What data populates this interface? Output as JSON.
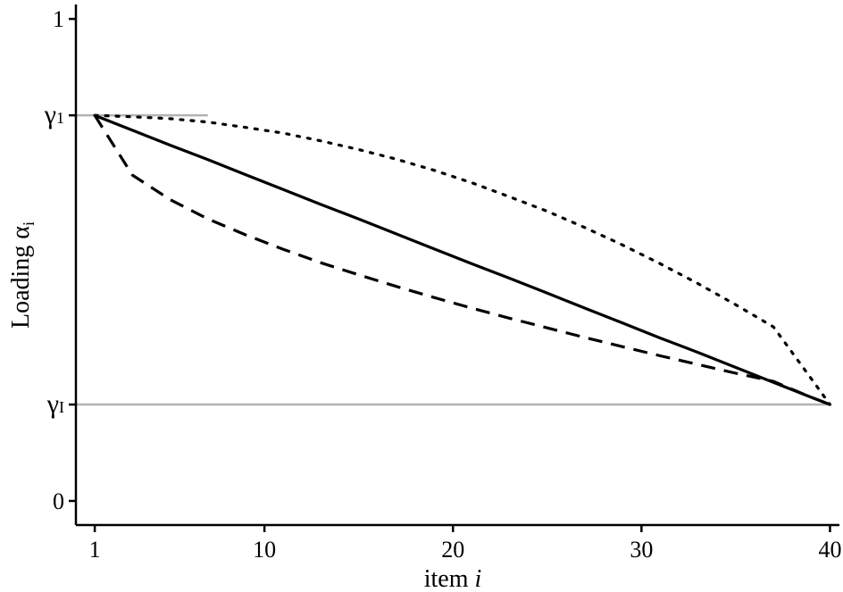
{
  "chart_data": {
    "type": "line",
    "xlabel": "item",
    "xlabel_var": "i",
    "ylabel": "Loading",
    "ylabel_symbol": "α",
    "ylabel_subscript": "i",
    "xlim": [
      0,
      40.5
    ],
    "ylim": [
      -0.05,
      1.03
    ],
    "x_ticks": [
      1,
      10,
      20,
      30,
      40
    ],
    "y_ticks": [
      {
        "value": 0,
        "label": "0"
      },
      {
        "value": 0.2,
        "label": "γ",
        "subscript": "I"
      },
      {
        "value": 0.8,
        "label": "γ",
        "subscript": "1"
      },
      {
        "value": 1,
        "label": "1"
      }
    ],
    "reference_lines": [
      {
        "name": "gamma_1",
        "y": 0.8,
        "x_from": 0,
        "x_to": 7,
        "color": "#b3b3b3"
      },
      {
        "name": "gamma_I",
        "y": 0.2,
        "x_from": 0,
        "x_to": 40,
        "color": "#b3b3b3"
      }
    ],
    "x": [
      1,
      3,
      5,
      7,
      9,
      11,
      13,
      15,
      17,
      19,
      21,
      23,
      25,
      27,
      29,
      31,
      33,
      35,
      37,
      39,
      40
    ],
    "series": [
      {
        "style": "solid",
        "values": [
          0.8,
          0.769,
          0.738,
          0.708,
          0.677,
          0.646,
          0.615,
          0.585,
          0.554,
          0.523,
          0.492,
          0.462,
          0.431,
          0.4,
          0.369,
          0.338,
          0.308,
          0.277,
          0.246,
          0.215,
          0.2
        ]
      },
      {
        "style": "dotted",
        "values": [
          0.8,
          0.797,
          0.793,
          0.786,
          0.775,
          0.763,
          0.747,
          0.729,
          0.709,
          0.686,
          0.66,
          0.631,
          0.601,
          0.567,
          0.531,
          0.492,
          0.451,
          0.407,
          0.361,
          0.254,
          0.2
        ]
      },
      {
        "style": "dashed",
        "values": [
          0.8,
          0.676,
          0.625,
          0.585,
          0.552,
          0.522,
          0.494,
          0.469,
          0.445,
          0.422,
          0.4,
          0.379,
          0.359,
          0.339,
          0.32,
          0.301,
          0.283,
          0.265,
          0.248,
          0.215,
          0.2
        ]
      }
    ],
    "colors": {
      "series": "#000000",
      "reference": "#b3b3b3",
      "axis": "#000000"
    },
    "grid": false,
    "legend": "none"
  }
}
